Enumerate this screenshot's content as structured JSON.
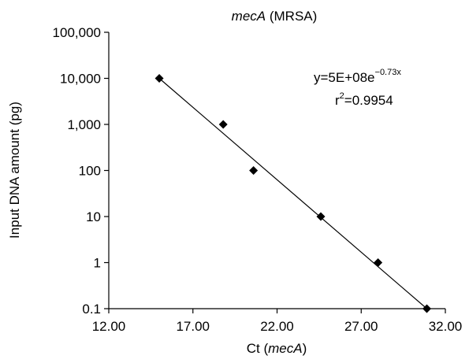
{
  "chart_data": {
    "type": "scatter",
    "title": {
      "italic": "mecA",
      "rest": " (MRSA)"
    },
    "xlabel": {
      "prefix": "Ct (",
      "italic": "mecA",
      "suffix": ")"
    },
    "ylabel": "Input DNA amount (pg)",
    "xlim": [
      12,
      32
    ],
    "x_ticks": [
      12,
      17,
      22,
      27,
      32
    ],
    "x_tick_labels": [
      "12.00",
      "17.00",
      "22.00",
      "27.00",
      "32.00"
    ],
    "y_scale": "log",
    "ylim": [
      0.1,
      100000
    ],
    "y_ticks": [
      0.1,
      1,
      10,
      100,
      1000,
      10000,
      100000
    ],
    "y_tick_labels": [
      "0.1",
      "1",
      "10",
      "100",
      "1,000",
      "10,000",
      "100,000"
    ],
    "series": [
      {
        "marker": "diamond",
        "color": "#000000",
        "x": [
          15.0,
          18.8,
          20.6,
          24.6,
          28.0,
          30.9
        ],
        "y": [
          10000,
          1000,
          100,
          10,
          1,
          0.1
        ]
      }
    ],
    "trendline": {
      "color": "#000000",
      "from": {
        "x": 15.0,
        "y": 10000
      },
      "to": {
        "x": 30.9,
        "y": 0.1
      }
    },
    "equation": {
      "base": "y=5E+08e",
      "exponent": "−0.73x",
      "r_label": "r",
      "r_exp": "2",
      "r_value": "=0.9954"
    },
    "grid": false,
    "legend": "none"
  }
}
